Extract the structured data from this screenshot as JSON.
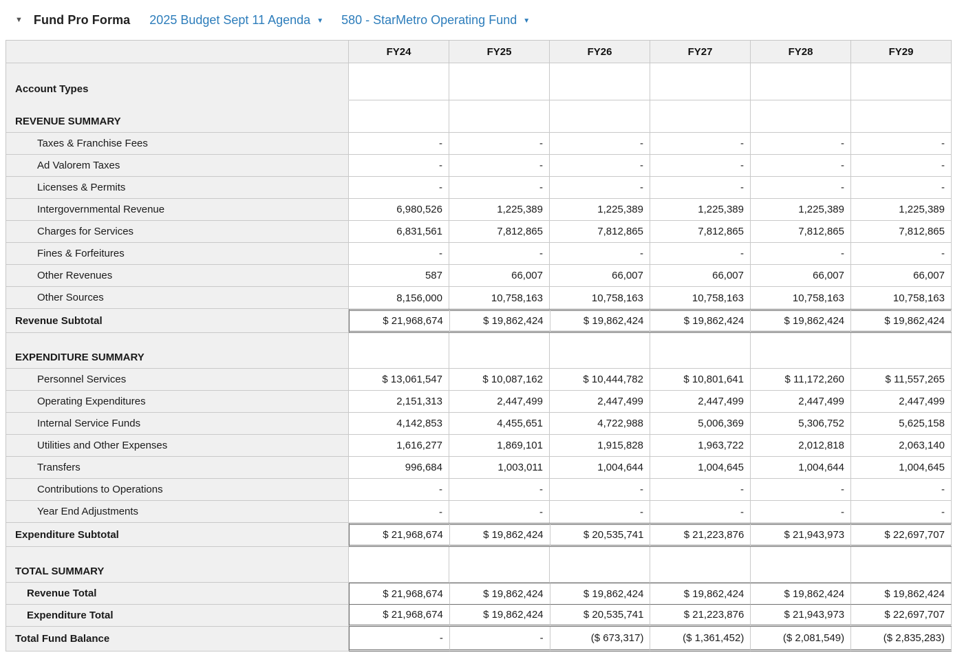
{
  "header": {
    "collapse_icon": "▼",
    "title": "Fund Pro Forma",
    "budget_dropdown": {
      "label": "2025 Budget Sept 11 Agenda",
      "chevron": "▼"
    },
    "fund_dropdown": {
      "label": "580 - StarMetro Operating Fund",
      "chevron": "▼"
    },
    "link_color": "#2d7dbb"
  },
  "table": {
    "columns": [
      "FY24",
      "FY25",
      "FY26",
      "FY27",
      "FY28",
      "FY29"
    ],
    "rows": [
      {
        "name": "row-account-types",
        "type": "sectionA",
        "label": "Account Types",
        "cells": [
          "",
          "",
          "",
          "",
          "",
          ""
        ]
      },
      {
        "name": "row-revenue-summary",
        "type": "sectionB",
        "label": "REVENUE SUMMARY",
        "cells": [
          "",
          "",
          "",
          "",
          "",
          ""
        ]
      },
      {
        "name": "row-taxes-franchise-fees",
        "type": "detail",
        "label": "Taxes & Franchise Fees",
        "cells": [
          "-",
          "-",
          "-",
          "-",
          "-",
          "-"
        ]
      },
      {
        "name": "row-ad-valorem-taxes",
        "type": "detail",
        "label": "Ad Valorem Taxes",
        "cells": [
          "-",
          "-",
          "-",
          "-",
          "-",
          "-"
        ]
      },
      {
        "name": "row-licenses-permits",
        "type": "detail",
        "label": "Licenses & Permits",
        "cells": [
          "-",
          "-",
          "-",
          "-",
          "-",
          "-"
        ]
      },
      {
        "name": "row-intergovernmental-revenue",
        "type": "detail",
        "label": "Intergovernmental Revenue",
        "cells": [
          "6,980,526",
          "1,225,389",
          "1,225,389",
          "1,225,389",
          "1,225,389",
          "1,225,389"
        ]
      },
      {
        "name": "row-charges-for-services",
        "type": "detail",
        "label": "Charges for Services",
        "cells": [
          "6,831,561",
          "7,812,865",
          "7,812,865",
          "7,812,865",
          "7,812,865",
          "7,812,865"
        ]
      },
      {
        "name": "row-fines-forfeitures",
        "type": "detail",
        "label": "Fines & Forfeitures",
        "cells": [
          "-",
          "-",
          "-",
          "-",
          "-",
          "-"
        ]
      },
      {
        "name": "row-other-revenues",
        "type": "detail",
        "label": "Other Revenues",
        "cells": [
          "587",
          "66,007",
          "66,007",
          "66,007",
          "66,007",
          "66,007"
        ]
      },
      {
        "name": "row-other-sources",
        "type": "detail last",
        "label": "Other Sources",
        "cells": [
          "8,156,000",
          "10,758,163",
          "10,758,163",
          "10,758,163",
          "10,758,163",
          "10,758,163"
        ]
      },
      {
        "name": "row-revenue-subtotal",
        "type": "subtotal",
        "label": "Revenue Subtotal",
        "cells": [
          "$ 21,968,674",
          "$ 19,862,424",
          "$ 19,862,424",
          "$ 19,862,424",
          "$ 19,862,424",
          "$ 19,862,424"
        ]
      },
      {
        "name": "row-expenditure-summary",
        "type": "summary",
        "label": "EXPENDITURE SUMMARY",
        "cells": [
          "",
          "",
          "",
          "",
          "",
          ""
        ]
      },
      {
        "name": "row-personnel-services",
        "type": "detail",
        "label": "Personnel Services",
        "cells": [
          "$ 13,061,547",
          "$ 10,087,162",
          "$ 10,444,782",
          "$ 10,801,641",
          "$ 11,172,260",
          "$ 11,557,265"
        ]
      },
      {
        "name": "row-operating-expenditures",
        "type": "detail",
        "label": "Operating Expenditures",
        "cells": [
          "2,151,313",
          "2,447,499",
          "2,447,499",
          "2,447,499",
          "2,447,499",
          "2,447,499"
        ]
      },
      {
        "name": "row-internal-service-funds",
        "type": "detail",
        "label": "Internal Service Funds",
        "cells": [
          "4,142,853",
          "4,455,651",
          "4,722,988",
          "5,006,369",
          "5,306,752",
          "5,625,158"
        ]
      },
      {
        "name": "row-utilities-other-expenses",
        "type": "detail",
        "label": "Utilities and Other Expenses",
        "cells": [
          "1,616,277",
          "1,869,101",
          "1,915,828",
          "1,963,722",
          "2,012,818",
          "2,063,140"
        ]
      },
      {
        "name": "row-transfers",
        "type": "detail",
        "label": "Transfers",
        "cells": [
          "996,684",
          "1,003,011",
          "1,004,644",
          "1,004,645",
          "1,004,644",
          "1,004,645"
        ]
      },
      {
        "name": "row-contributions-to-operations",
        "type": "detail",
        "label": "Contributions to Operations",
        "cells": [
          "-",
          "-",
          "-",
          "-",
          "-",
          "-"
        ]
      },
      {
        "name": "row-year-end-adjustments",
        "type": "detail last",
        "label": "Year End Adjustments",
        "cells": [
          "-",
          "-",
          "-",
          "-",
          "-",
          "-"
        ]
      },
      {
        "name": "row-expenditure-subtotal",
        "type": "subtotal",
        "label": "Expenditure Subtotal",
        "cells": [
          "$ 21,968,674",
          "$ 19,862,424",
          "$ 20,535,741",
          "$ 21,223,876",
          "$ 21,943,973",
          "$ 22,697,707"
        ]
      },
      {
        "name": "row-total-summary",
        "type": "summary",
        "label": "TOTAL SUMMARY",
        "cells": [
          "",
          "",
          "",
          "",
          "",
          ""
        ]
      },
      {
        "name": "row-revenue-total",
        "type": "total first",
        "label": "Revenue Total",
        "cells": [
          "$ 21,968,674",
          "$ 19,862,424",
          "$ 19,862,424",
          "$ 19,862,424",
          "$ 19,862,424",
          "$ 19,862,424"
        ]
      },
      {
        "name": "row-expenditure-total",
        "type": "total last",
        "label": "Expenditure Total",
        "cells": [
          "$ 21,968,674",
          "$ 19,862,424",
          "$ 20,535,741",
          "$ 21,223,876",
          "$ 21,943,973",
          "$ 22,697,707"
        ]
      },
      {
        "name": "row-total-fund-balance",
        "type": "balance",
        "label": "Total Fund Balance",
        "cells": [
          "-",
          "-",
          "($ 673,317)",
          "($ 1,361,452)",
          "($ 2,081,549)",
          "($ 2,835,283)"
        ]
      }
    ]
  }
}
